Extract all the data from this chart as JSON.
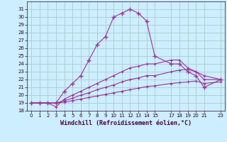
{
  "background_color": "#cceeff",
  "grid_color": "#aacccc",
  "line_color": "#993399",
  "xlabel": "Windchill (Refroidissement éolien,°C)",
  "xlim": [
    -0.5,
    23.5
  ],
  "ylim": [
    18,
    32
  ],
  "xticks": [
    0,
    1,
    2,
    3,
    4,
    5,
    6,
    7,
    8,
    9,
    10,
    11,
    12,
    13,
    14,
    15,
    17,
    18,
    19,
    20,
    21,
    23
  ],
  "yticks": [
    18,
    19,
    20,
    21,
    22,
    23,
    24,
    25,
    26,
    27,
    28,
    29,
    30,
    31
  ],
  "curve1_x": [
    0,
    1,
    2,
    3,
    4,
    5,
    6,
    7,
    8,
    9,
    10,
    11,
    12,
    13,
    14,
    15,
    17,
    18,
    19,
    20,
    21,
    23
  ],
  "curve1_y": [
    19,
    19,
    19,
    19,
    20.5,
    21.5,
    22.5,
    24.5,
    26.5,
    27.5,
    30,
    30.5,
    31,
    30.5,
    29.5,
    25,
    24,
    24,
    23,
    22.5,
    21,
    22
  ],
  "curve2_x": [
    0,
    1,
    2,
    3,
    4,
    5,
    6,
    7,
    8,
    9,
    10,
    11,
    12,
    13,
    14,
    15,
    17,
    18,
    19,
    20,
    21,
    23
  ],
  "curve2_y": [
    19,
    19,
    19,
    18.5,
    19.5,
    20.0,
    20.5,
    21.0,
    21.5,
    22.0,
    22.5,
    23.0,
    23.5,
    23.7,
    24.0,
    24.0,
    24.5,
    24.5,
    23.5,
    23.0,
    22.5,
    22.0
  ],
  "curve3_x": [
    0,
    1,
    2,
    3,
    4,
    5,
    6,
    7,
    8,
    9,
    10,
    11,
    12,
    13,
    14,
    15,
    17,
    18,
    19,
    20,
    21,
    23
  ],
  "curve3_y": [
    19,
    19,
    19,
    19,
    19.3,
    19.6,
    20.0,
    20.3,
    20.7,
    21.0,
    21.3,
    21.7,
    22.0,
    22.2,
    22.5,
    22.5,
    23.0,
    23.2,
    23.3,
    23.0,
    22.0,
    22.0
  ],
  "curve4_x": [
    0,
    1,
    2,
    3,
    4,
    5,
    6,
    7,
    8,
    9,
    10,
    11,
    12,
    13,
    14,
    15,
    17,
    18,
    19,
    20,
    21,
    23
  ],
  "curve4_y": [
    19,
    19,
    19,
    19,
    19.1,
    19.3,
    19.5,
    19.7,
    19.9,
    20.1,
    20.3,
    20.5,
    20.7,
    20.9,
    21.1,
    21.2,
    21.5,
    21.6,
    21.7,
    21.8,
    21.5,
    21.7
  ]
}
